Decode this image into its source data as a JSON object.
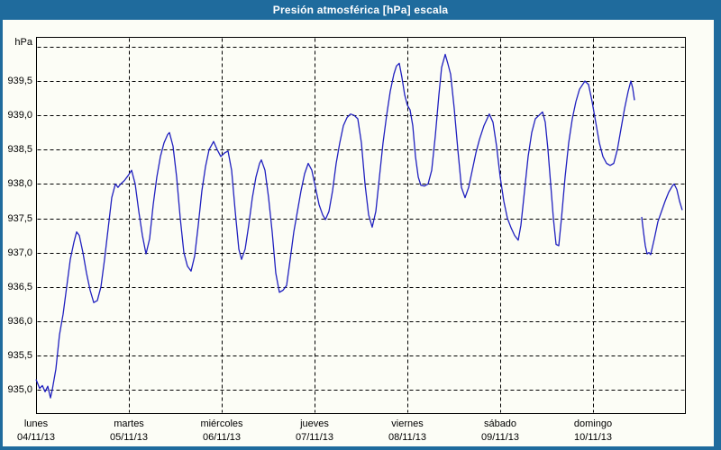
{
  "window": {
    "title": "Presión atmosférica [hPa] escala"
  },
  "colors": {
    "titlebar": "#1f6b9d",
    "frame": "#1f6b9d",
    "background": "#fcfdf6",
    "grid": "#000000",
    "axis_border": "#000000",
    "line": "#2020bf",
    "title_text": "#ffffff"
  },
  "chart_data": {
    "type": "line",
    "title": "Presión atmosférica [hPa] escala",
    "ylabel": "hPa",
    "xlabel": "",
    "grid": "dashed",
    "legend": "none",
    "ylim": [
      934.65,
      940.15
    ],
    "xlim_days": [
      0,
      7
    ],
    "y_axis": {
      "unit": "hPa",
      "ticks": [
        {
          "value": 940.0,
          "label": ""
        },
        {
          "value": 939.5,
          "label": "939,5"
        },
        {
          "value": 939.0,
          "label": "939,0"
        },
        {
          "value": 938.5,
          "label": "938,5"
        },
        {
          "value": 938.0,
          "label": "938,0"
        },
        {
          "value": 937.5,
          "label": "937,5"
        },
        {
          "value": 937.0,
          "label": "937,0"
        },
        {
          "value": 936.5,
          "label": "936,5"
        },
        {
          "value": 936.0,
          "label": "936,0"
        },
        {
          "value": 935.5,
          "label": "935,5"
        },
        {
          "value": 935.0,
          "label": "935,0"
        }
      ]
    },
    "x_axis": {
      "days": [
        {
          "name": "lunes",
          "date": "04/11/13"
        },
        {
          "name": "martes",
          "date": "05/11/13"
        },
        {
          "name": "miércoles",
          "date": "06/11/13"
        },
        {
          "name": "jueves",
          "date": "07/11/13"
        },
        {
          "name": "viernes",
          "date": "08/11/13"
        },
        {
          "name": "sábado",
          "date": "09/11/13"
        },
        {
          "name": "domingo",
          "date": "10/11/13"
        }
      ]
    },
    "series": [
      {
        "name": "presión atmosférica",
        "color": "#2020bf",
        "segments": [
          [
            [
              0.0,
              935.15
            ],
            [
              0.039,
              935.02
            ],
            [
              0.068,
              935.06
            ],
            [
              0.097,
              934.97
            ],
            [
              0.126,
              935.05
            ],
            [
              0.155,
              934.88
            ],
            [
              0.175,
              935.0
            ],
            [
              0.214,
              935.3
            ],
            [
              0.252,
              935.8
            ],
            [
              0.291,
              936.1
            ],
            [
              0.33,
              936.5
            ],
            [
              0.369,
              936.9
            ],
            [
              0.408,
              937.15
            ],
            [
              0.437,
              937.3
            ],
            [
              0.466,
              937.25
            ],
            [
              0.505,
              937.0
            ],
            [
              0.544,
              936.7
            ],
            [
              0.583,
              936.45
            ],
            [
              0.621,
              936.27
            ],
            [
              0.66,
              936.3
            ],
            [
              0.699,
              936.5
            ],
            [
              0.738,
              936.9
            ],
            [
              0.777,
              937.35
            ],
            [
              0.816,
              937.8
            ],
            [
              0.854,
              938.0
            ],
            [
              0.883,
              937.95
            ],
            [
              0.913,
              938.0
            ],
            [
              0.951,
              938.05
            ],
            [
              0.99,
              938.12
            ],
            [
              1.029,
              938.2
            ],
            [
              1.068,
              938.0
            ],
            [
              1.107,
              937.6
            ],
            [
              1.146,
              937.25
            ],
            [
              1.184,
              936.98
            ],
            [
              1.223,
              937.2
            ],
            [
              1.262,
              937.7
            ],
            [
              1.301,
              938.1
            ],
            [
              1.34,
              938.4
            ],
            [
              1.379,
              938.6
            ],
            [
              1.417,
              938.72
            ],
            [
              1.437,
              938.75
            ],
            [
              1.476,
              938.55
            ],
            [
              1.515,
              938.1
            ],
            [
              1.553,
              937.5
            ],
            [
              1.592,
              937.0
            ],
            [
              1.631,
              936.8
            ],
            [
              1.67,
              936.73
            ],
            [
              1.709,
              936.95
            ],
            [
              1.748,
              937.4
            ],
            [
              1.786,
              937.9
            ],
            [
              1.825,
              938.25
            ],
            [
              1.864,
              938.5
            ],
            [
              1.913,
              938.62
            ],
            [
              1.951,
              938.5
            ],
            [
              1.99,
              938.4
            ],
            [
              2.029,
              938.45
            ],
            [
              2.068,
              938.48
            ],
            [
              2.107,
              938.2
            ],
            [
              2.146,
              937.6
            ],
            [
              2.184,
              937.05
            ],
            [
              2.214,
              936.9
            ],
            [
              2.252,
              937.05
            ],
            [
              2.291,
              937.4
            ],
            [
              2.33,
              937.8
            ],
            [
              2.369,
              938.1
            ],
            [
              2.408,
              938.3
            ],
            [
              2.427,
              938.35
            ],
            [
              2.466,
              938.2
            ],
            [
              2.505,
              937.8
            ],
            [
              2.544,
              937.3
            ],
            [
              2.583,
              936.7
            ],
            [
              2.621,
              936.42
            ],
            [
              2.66,
              936.45
            ],
            [
              2.699,
              936.52
            ],
            [
              2.738,
              936.9
            ],
            [
              2.777,
              937.3
            ],
            [
              2.816,
              937.6
            ],
            [
              2.854,
              937.9
            ],
            [
              2.893,
              938.15
            ],
            [
              2.932,
              938.3
            ],
            [
              2.971,
              938.2
            ],
            [
              3.01,
              937.95
            ],
            [
              3.049,
              937.7
            ],
            [
              3.087,
              937.55
            ],
            [
              3.117,
              937.48
            ],
            [
              3.155,
              937.6
            ],
            [
              3.194,
              937.9
            ],
            [
              3.233,
              938.3
            ],
            [
              3.272,
              938.6
            ],
            [
              3.311,
              938.85
            ],
            [
              3.35,
              938.97
            ],
            [
              3.388,
              939.02
            ],
            [
              3.427,
              939.0
            ],
            [
              3.466,
              938.95
            ],
            [
              3.505,
              938.6
            ],
            [
              3.544,
              938.0
            ],
            [
              3.583,
              937.55
            ],
            [
              3.621,
              937.37
            ],
            [
              3.66,
              937.6
            ],
            [
              3.699,
              938.1
            ],
            [
              3.738,
              938.6
            ],
            [
              3.777,
              939.0
            ],
            [
              3.816,
              939.35
            ],
            [
              3.854,
              939.6
            ],
            [
              3.883,
              939.72
            ],
            [
              3.913,
              939.76
            ],
            [
              3.942,
              939.55
            ],
            [
              3.971,
              939.3
            ],
            [
              4.0,
              939.15
            ],
            [
              4.029,
              939.08
            ],
            [
              4.058,
              938.85
            ],
            [
              4.087,
              938.4
            ],
            [
              4.117,
              938.1
            ],
            [
              4.146,
              937.98
            ],
            [
              4.184,
              937.97
            ],
            [
              4.223,
              938.0
            ],
            [
              4.262,
              938.2
            ],
            [
              4.301,
              938.7
            ],
            [
              4.34,
              939.3
            ],
            [
              4.369,
              939.7
            ],
            [
              4.408,
              939.89
            ],
            [
              4.437,
              939.75
            ],
            [
              4.466,
              939.6
            ],
            [
              4.505,
              939.1
            ],
            [
              4.544,
              938.5
            ],
            [
              4.583,
              937.95
            ],
            [
              4.621,
              937.8
            ],
            [
              4.66,
              937.95
            ],
            [
              4.699,
              938.2
            ],
            [
              4.738,
              938.45
            ],
            [
              4.777,
              938.65
            ],
            [
              4.825,
              938.85
            ],
            [
              4.883,
              939.02
            ],
            [
              4.922,
              938.9
            ],
            [
              4.961,
              938.55
            ],
            [
              5.0,
              938.1
            ],
            [
              5.039,
              937.75
            ],
            [
              5.078,
              937.5
            ],
            [
              5.117,
              937.36
            ],
            [
              5.155,
              937.25
            ],
            [
              5.194,
              937.18
            ],
            [
              5.223,
              937.4
            ],
            [
              5.262,
              937.9
            ],
            [
              5.301,
              938.4
            ],
            [
              5.34,
              938.75
            ],
            [
              5.379,
              938.95
            ],
            [
              5.417,
              939.0
            ],
            [
              5.456,
              939.05
            ],
            [
              5.485,
              938.9
            ],
            [
              5.515,
              938.5
            ],
            [
              5.544,
              938.0
            ],
            [
              5.573,
              937.5
            ],
            [
              5.602,
              937.12
            ],
            [
              5.631,
              937.1
            ],
            [
              5.66,
              937.5
            ],
            [
              5.699,
              938.1
            ],
            [
              5.738,
              938.6
            ],
            [
              5.777,
              938.95
            ],
            [
              5.816,
              939.2
            ],
            [
              5.854,
              939.38
            ],
            [
              5.913,
              939.5
            ],
            [
              5.951,
              939.45
            ],
            [
              5.99,
              939.2
            ],
            [
              6.029,
              938.9
            ],
            [
              6.068,
              938.6
            ],
            [
              6.107,
              938.4
            ],
            [
              6.146,
              938.3
            ],
            [
              6.184,
              938.27
            ],
            [
              6.223,
              938.3
            ],
            [
              6.262,
              938.5
            ],
            [
              6.301,
              938.8
            ],
            [
              6.34,
              939.1
            ],
            [
              6.379,
              939.35
            ],
            [
              6.408,
              939.5
            ],
            [
              6.427,
              939.4
            ],
            [
              6.447,
              939.22
            ]
          ],
          [
            [
              6.524,
              937.52
            ],
            [
              6.544,
              937.3
            ],
            [
              6.563,
              937.1
            ],
            [
              6.583,
              936.98
            ],
            [
              6.602,
              937.0
            ],
            [
              6.621,
              936.97
            ],
            [
              6.66,
              937.2
            ],
            [
              6.699,
              937.45
            ],
            [
              6.738,
              937.6
            ],
            [
              6.777,
              937.75
            ],
            [
              6.816,
              937.88
            ],
            [
              6.854,
              937.97
            ],
            [
              6.874,
              938.0
            ],
            [
              6.903,
              937.92
            ],
            [
              6.932,
              937.75
            ],
            [
              6.961,
              937.62
            ]
          ]
        ]
      }
    ]
  }
}
